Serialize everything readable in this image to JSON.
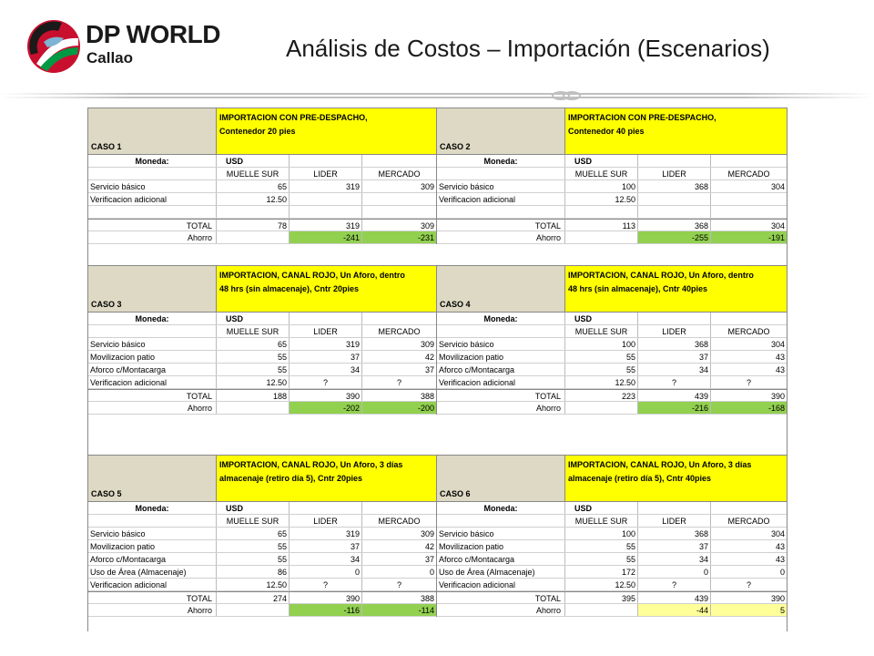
{
  "logo": {
    "line1": "DP WORLD",
    "line2": "Callao"
  },
  "title": "Análisis de Costos – Importación (Escenarios)",
  "labels": {
    "moneda": "Moneda:",
    "usd": "USD",
    "muelle_sur": "MUELLE SUR",
    "lider": "LIDER",
    "mercado": "MERCADO",
    "total": "TOTAL",
    "ahorro": "Ahorro"
  },
  "cases": [
    {
      "id": "CASO 1",
      "desc_line1": "IMPORTACION CON PRE-DESPACHO,",
      "desc_line2": "Contenedor 20 pies",
      "rows": [
        {
          "label": "Servicio básico",
          "ms": "65",
          "lider": "319",
          "mercado": "309"
        },
        {
          "label": "Verificacion adicional",
          "ms": "12.50",
          "lider": "",
          "mercado": ""
        }
      ],
      "total": {
        "ms": "78",
        "lider": "319",
        "mercado": "309"
      },
      "ahorro": {
        "lider": "-241",
        "mercado": "-231"
      }
    },
    {
      "id": "CASO 2",
      "desc_line1": "IMPORTACION CON PRE-DESPACHO,",
      "desc_line2": "Contenedor 40 pies",
      "rows": [
        {
          "label": "Servicio básico",
          "ms": "100",
          "lider": "368",
          "mercado": "304"
        },
        {
          "label": "Verificacion adicional",
          "ms": "12.50",
          "lider": "",
          "mercado": ""
        }
      ],
      "total": {
        "ms": "113",
        "lider": "368",
        "mercado": "304"
      },
      "ahorro": {
        "lider": "-255",
        "mercado": "-191"
      }
    },
    {
      "id": "CASO 3",
      "desc_line1": "IMPORTACION, CANAL ROJO, Un Aforo, dentro",
      "desc_line2": "48 hrs (sin almacenaje), Cntr 20pies",
      "rows": [
        {
          "label": "Servicio básico",
          "ms": "65",
          "lider": "319",
          "mercado": "309"
        },
        {
          "label": "Movilizacion patio",
          "ms": "55",
          "lider": "37",
          "mercado": "42"
        },
        {
          "label": "Aforco c/Montacarga",
          "ms": "55",
          "lider": "34",
          "mercado": "37"
        },
        {
          "label": "Verificacion adicional",
          "ms": "12.50",
          "lider": "?",
          "mercado": "?"
        }
      ],
      "total": {
        "ms": "188",
        "lider": "390",
        "mercado": "388"
      },
      "ahorro": {
        "lider": "-202",
        "mercado": "-200"
      }
    },
    {
      "id": "CASO 4",
      "desc_line1": "IMPORTACION, CANAL ROJO, Un Aforo, dentro",
      "desc_line2": "48 hrs (sin almacenaje), Cntr 40pies",
      "rows": [
        {
          "label": "Servicio básico",
          "ms": "100",
          "lider": "368",
          "mercado": "304"
        },
        {
          "label": "Movilizacion patio",
          "ms": "55",
          "lider": "37",
          "mercado": "43"
        },
        {
          "label": "Aforco c/Montacarga",
          "ms": "55",
          "lider": "34",
          "mercado": "43"
        },
        {
          "label": "Verificacion adicional",
          "ms": "12.50",
          "lider": "?",
          "mercado": "?"
        }
      ],
      "total": {
        "ms": "223",
        "lider": "439",
        "mercado": "390"
      },
      "ahorro": {
        "lider": "-216",
        "mercado": "-168"
      }
    },
    {
      "id": "CASO 5",
      "desc_line1": "IMPORTACION, CANAL ROJO, Un Aforo, 3 días",
      "desc_line2": "almacenaje (retiro día 5), Cntr 20pies",
      "rows": [
        {
          "label": "Servicio básico",
          "ms": "65",
          "lider": "319",
          "mercado": "309"
        },
        {
          "label": "Movilizacion patio",
          "ms": "55",
          "lider": "37",
          "mercado": "42"
        },
        {
          "label": "Aforco c/Montacarga",
          "ms": "55",
          "lider": "34",
          "mercado": "37"
        },
        {
          "label": "Uso de Área (Almacenaje)",
          "ms": "86",
          "lider": "0",
          "mercado": "0"
        },
        {
          "label": "Verificacion adicional",
          "ms": "12.50",
          "lider": "?",
          "mercado": "?"
        }
      ],
      "total": {
        "ms": "274",
        "lider": "390",
        "mercado": "388"
      },
      "ahorro": {
        "lider": "-116",
        "mercado": "-114"
      }
    },
    {
      "id": "CASO 6",
      "desc_line1": "IMPORTACION, CANAL ROJO, Un Aforo, 3 días",
      "desc_line2": "almacenaje (retiro día 5), Cntr 40pies",
      "rows": [
        {
          "label": "Servicio básico",
          "ms": "100",
          "lider": "368",
          "mercado": "304"
        },
        {
          "label": "Movilizacion patio",
          "ms": "55",
          "lider": "37",
          "mercado": "43"
        },
        {
          "label": "Aforco c/Montacarga",
          "ms": "55",
          "lider": "34",
          "mercado": "43"
        },
        {
          "label": "Uso de Área (Almacenaje)",
          "ms": "172",
          "lider": "0",
          "mercado": "0"
        },
        {
          "label": "Verificacion adicional",
          "ms": "12.50",
          "lider": "?",
          "mercado": "?"
        }
      ],
      "total": {
        "ms": "395",
        "lider": "439",
        "mercado": "390"
      },
      "ahorro": {
        "lider": "-44",
        "mercado": "5"
      }
    }
  ],
  "colors": {
    "header_yellow": "#ffff00",
    "case_bg": "#ddd9c4",
    "ahorro_green": "#92d050",
    "ahorro_light": "#ffff99"
  }
}
